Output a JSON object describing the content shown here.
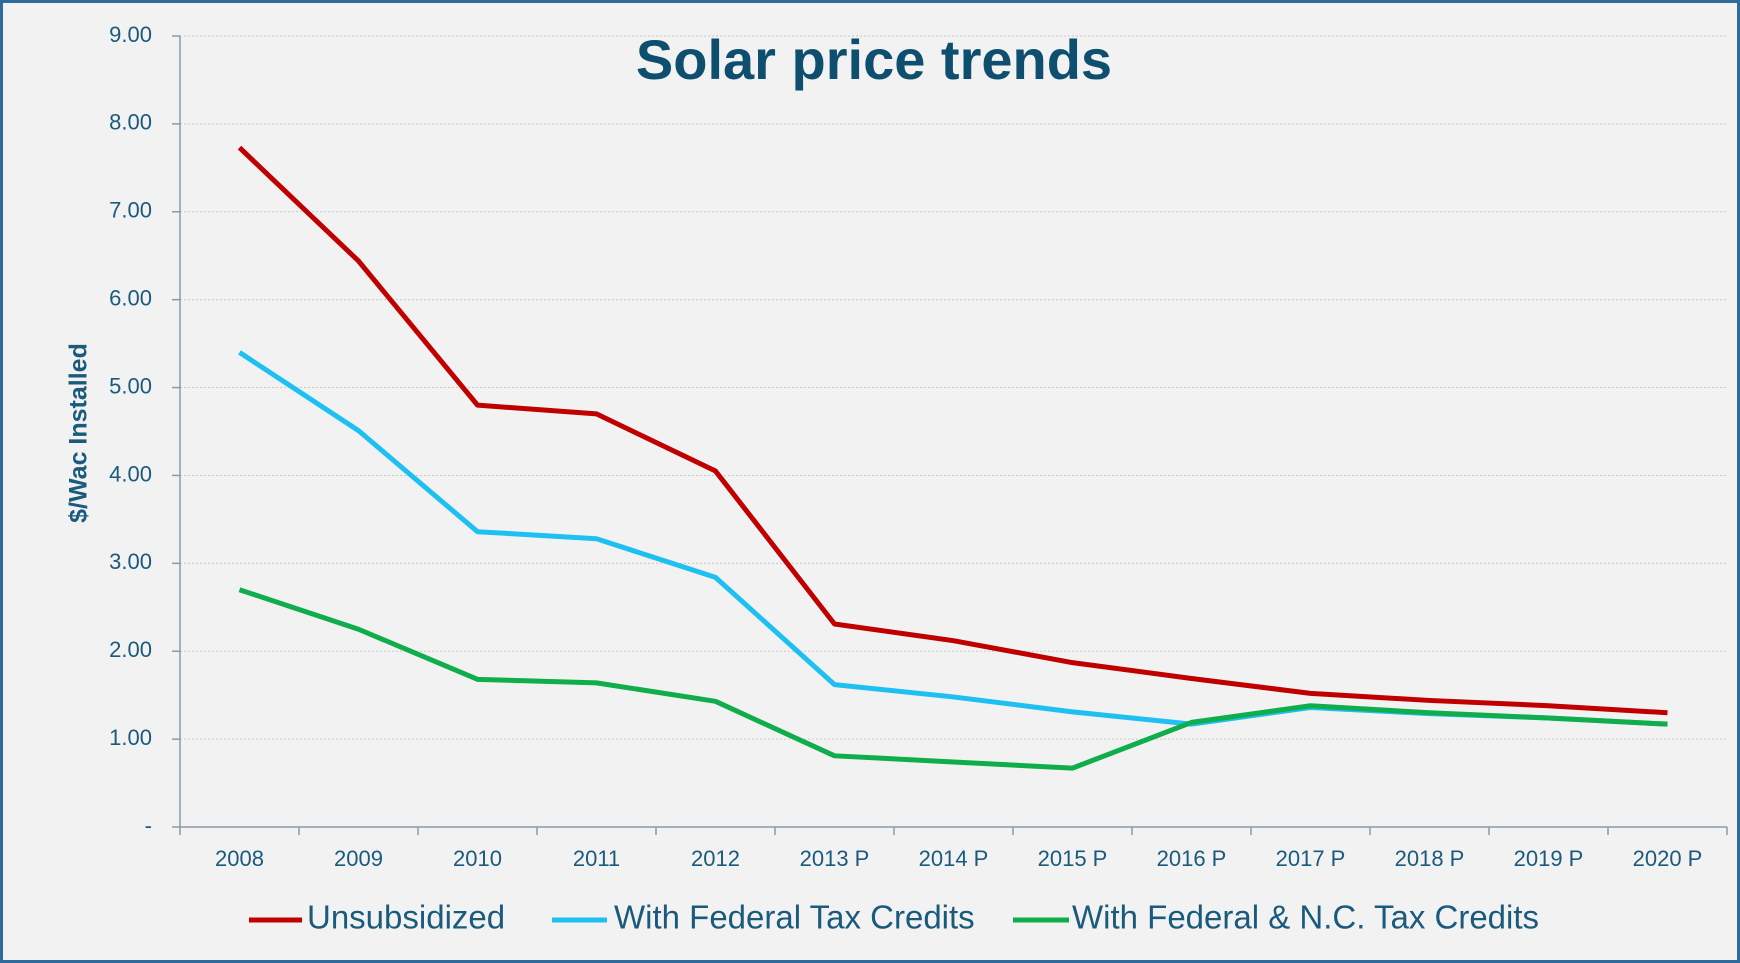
{
  "chart_data": {
    "type": "line",
    "title": "Solar price trends",
    "y_label": "$/Wac Installed",
    "categories": [
      "2008",
      "2009",
      "2010",
      "2011",
      "2012",
      "2013 P",
      "2014 P",
      "2015 P",
      "2016 P",
      "2017 P",
      "2018 P",
      "2019 P",
      "2020 P"
    ],
    "series": [
      {
        "name": "Unsubsidized",
        "color": "#c00000",
        "values": [
          7.73,
          6.44,
          4.8,
          4.7,
          4.05,
          2.31,
          2.12,
          1.87,
          1.69,
          1.52,
          1.44,
          1.38,
          1.3
        ]
      },
      {
        "name": "With Federal Tax Credits",
        "color": "#1ec0f2",
        "values": [
          5.4,
          4.51,
          3.36,
          3.28,
          2.84,
          1.62,
          1.48,
          1.31,
          1.17,
          1.36,
          1.29,
          1.24,
          1.17
        ]
      },
      {
        "name": "With Federal & N.C. Tax Credits",
        "color": "#0fad4b",
        "values": [
          2.7,
          2.25,
          1.68,
          1.64,
          1.43,
          0.81,
          0.74,
          0.67,
          1.19,
          1.38,
          1.3,
          1.24,
          1.17
        ]
      }
    ],
    "ylim": [
      0,
      9
    ],
    "yticks": [
      {
        "value": 0,
        "label": "-"
      },
      {
        "value": 1,
        "label": "1.00"
      },
      {
        "value": 2,
        "label": "2.00"
      },
      {
        "value": 3,
        "label": "3.00"
      },
      {
        "value": 4,
        "label": "4.00"
      },
      {
        "value": 5,
        "label": "5.00"
      },
      {
        "value": 6,
        "label": "6.00"
      },
      {
        "value": 7,
        "label": "7.00"
      },
      {
        "value": 8,
        "label": "8.00"
      },
      {
        "value": 9,
        "label": "9.00"
      }
    ],
    "grid": true,
    "legend": "bottom"
  }
}
